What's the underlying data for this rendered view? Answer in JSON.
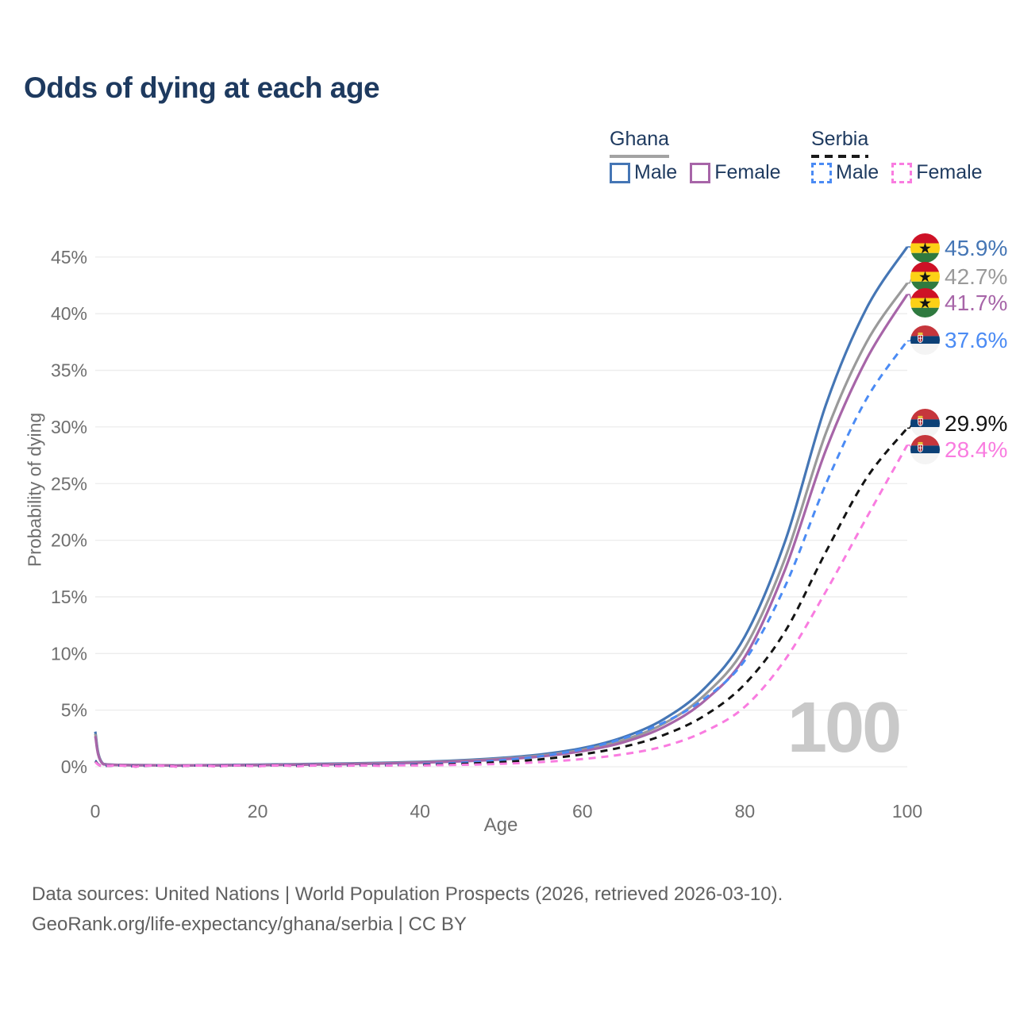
{
  "title": "Odds of dying at each age",
  "legend": {
    "groups": [
      {
        "country": "Ghana",
        "line_style": "solid",
        "underline_color": "#a3a3a3",
        "items": [
          {
            "label": "Male",
            "color": "#4576b5"
          },
          {
            "label": "Female",
            "color": "#a765a8"
          }
        ]
      },
      {
        "country": "Serbia",
        "line_style": "dashed",
        "underline_color": "#1a1a1a",
        "items": [
          {
            "label": "Male",
            "color": "#4b8bf4"
          },
          {
            "label": "Female",
            "color": "#f97ce0"
          }
        ]
      }
    ]
  },
  "axes": {
    "x_label": "Age",
    "y_label": "Probability of dying"
  },
  "watermark": "100",
  "footer": {
    "line1": "Data sources: United Nations | World Population Prospects (2026, retrieved 2026-03-10).",
    "line2": "GeoRank.org/life-expectancy/ghana/serbia | CC BY"
  },
  "chart_data": {
    "type": "line",
    "title": "Odds of dying at each age",
    "xlabel": "Age",
    "ylabel": "Probability of dying",
    "xlim": [
      0,
      100
    ],
    "ylim": [
      0,
      46
    ],
    "x_ticks": [
      0,
      20,
      40,
      60,
      80,
      100
    ],
    "y_ticks": [
      "0%",
      "5%",
      "10%",
      "15%",
      "20%",
      "25%",
      "30%",
      "35%",
      "40%",
      "45%"
    ],
    "grid": "horizontal",
    "legend_position": "top-right",
    "x": [
      0,
      1,
      5,
      10,
      15,
      20,
      25,
      30,
      35,
      40,
      45,
      50,
      55,
      60,
      65,
      70,
      75,
      80,
      85,
      90,
      95,
      100
    ],
    "series": [
      {
        "name": "Ghana Male",
        "country": "Ghana",
        "color": "#4576b5",
        "dash": "solid",
        "end_label": "45.9%",
        "flag": "ghana-flag",
        "values": [
          3.1,
          0.25,
          0.15,
          0.12,
          0.15,
          0.19,
          0.23,
          0.28,
          0.34,
          0.43,
          0.57,
          0.78,
          1.1,
          1.65,
          2.6,
          4.2,
          6.9,
          11.5,
          20.0,
          32.0,
          40.5,
          45.9
        ]
      },
      {
        "name": "Ghana (both sexes)",
        "country": "Ghana",
        "color": "#9a9a9a",
        "dash": "solid",
        "end_label": "42.7%",
        "flag": "ghana-flag",
        "values": [
          2.9,
          0.23,
          0.14,
          0.11,
          0.13,
          0.16,
          0.2,
          0.25,
          0.31,
          0.4,
          0.52,
          0.71,
          1.0,
          1.5,
          2.35,
          3.8,
          6.3,
          10.5,
          18.5,
          29.5,
          37.5,
          42.7
        ]
      },
      {
        "name": "Ghana Female",
        "country": "Ghana",
        "color": "#a765a8",
        "dash": "solid",
        "end_label": "41.7%",
        "flag": "ghana-flag",
        "values": [
          2.7,
          0.22,
          0.13,
          0.1,
          0.12,
          0.14,
          0.18,
          0.22,
          0.28,
          0.36,
          0.48,
          0.65,
          0.92,
          1.38,
          2.15,
          3.5,
          5.8,
          9.7,
          17.5,
          28.0,
          36.0,
          41.7
        ]
      },
      {
        "name": "Serbia Male",
        "country": "Serbia",
        "color": "#4b8bf4",
        "dash": "dashed",
        "end_label": "37.6%",
        "flag": "serbia-flag",
        "values": [
          0.55,
          0.04,
          0.02,
          0.02,
          0.04,
          0.07,
          0.09,
          0.11,
          0.15,
          0.22,
          0.35,
          0.58,
          0.95,
          1.55,
          2.5,
          3.9,
          6.0,
          9.4,
          16.0,
          25.0,
          32.5,
          37.6
        ]
      },
      {
        "name": "Serbia (both sexes)",
        "country": "Serbia",
        "color": "#141414",
        "dash": "dashed",
        "end_label": "29.9%",
        "flag": "serbia-flag",
        "values": [
          0.48,
          0.03,
          0.015,
          0.015,
          0.03,
          0.05,
          0.06,
          0.08,
          0.11,
          0.16,
          0.25,
          0.41,
          0.67,
          1.1,
          1.75,
          2.8,
          4.5,
          7.3,
          12.0,
          19.0,
          25.5,
          29.9
        ]
      },
      {
        "name": "Serbia Female",
        "country": "Serbia",
        "color": "#f97ce0",
        "dash": "dashed",
        "end_label": "28.4%",
        "flag": "serbia-flag",
        "values": [
          0.42,
          0.03,
          0.01,
          0.01,
          0.02,
          0.03,
          0.04,
          0.05,
          0.08,
          0.11,
          0.17,
          0.26,
          0.42,
          0.68,
          1.1,
          1.8,
          3.1,
          5.3,
          9.5,
          15.5,
          22.0,
          28.4
        ]
      }
    ]
  }
}
